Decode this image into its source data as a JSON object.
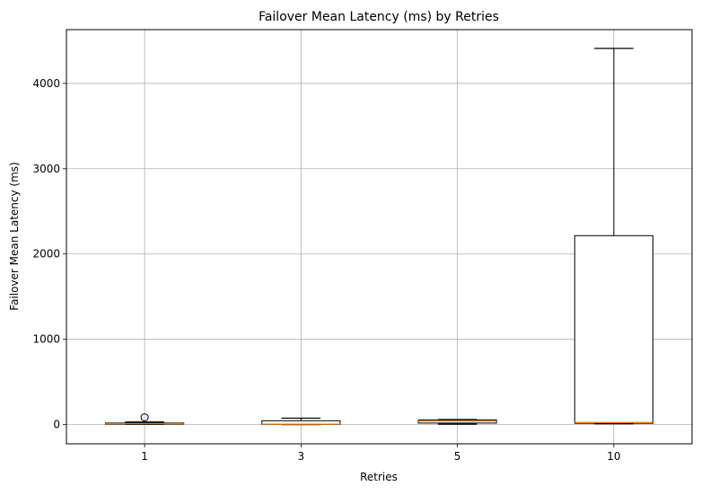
{
  "chart_data": {
    "type": "boxplot",
    "title": "Failover Mean Latency (ms) by Retries",
    "xlabel": "Retries",
    "ylabel": "Failover Mean Latency (ms)",
    "categories": [
      "1",
      "3",
      "5",
      "10"
    ],
    "ylim": [
      -225,
      4630
    ],
    "yticks": [
      0,
      1000,
      2000,
      3000,
      4000
    ],
    "grid": true,
    "colors": {
      "box": "#000000",
      "median": "#ff7f0e",
      "grid": "#b0b0b0"
    },
    "boxes": [
      {
        "category": "1",
        "whisker_low": 2,
        "q1": 5,
        "median": 10,
        "q3": 18,
        "whisker_high": 30,
        "fliers": [
          85
        ]
      },
      {
        "category": "3",
        "whisker_low": 0,
        "q1": 2,
        "median": 5,
        "q3": 45,
        "whisker_high": 75,
        "fliers": []
      },
      {
        "category": "5",
        "whisker_low": 5,
        "q1": 18,
        "median": 42,
        "q3": 55,
        "whisker_high": 60,
        "fliers": []
      },
      {
        "category": "10",
        "whisker_low": 10,
        "q1": 15,
        "median": 25,
        "q3": 2215,
        "whisker_high": 4410,
        "fliers": []
      }
    ]
  }
}
